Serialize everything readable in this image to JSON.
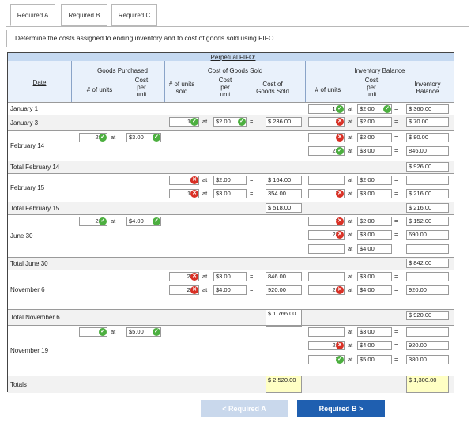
{
  "tabs": [
    "Required A",
    "Required B",
    "Required C"
  ],
  "instruction": "Determine the costs assigned to ending inventory and to cost of goods sold using FIFO.",
  "header": {
    "title": "Perpetual FIFO:",
    "goods_purchased": "Goods Purchased",
    "cogs": "Cost of Goods Sold",
    "inventory_balance": "Inventory Balance",
    "date": "Date",
    "num_units": "# of units",
    "cost_per_unit": [
      "Cost",
      "per",
      "unit"
    ],
    "num_units_sold": [
      "# of units",
      "sold"
    ],
    "cost_of_goods_sold": [
      "Cost of",
      "Goods Sold"
    ],
    "inv_balance": [
      "Inventory",
      "Balance"
    ]
  },
  "rows": [
    {
      "date": "January 1",
      "ib": [
        [
          "180",
          "ok",
          "at",
          "$2.00",
          "ok",
          "=",
          "$ 360.00"
        ]
      ]
    },
    {
      "date": "January 3",
      "sold": [
        [
          "118",
          "ok",
          "at",
          "$2.00",
          "ok",
          "=",
          "$ 236.00"
        ]
      ],
      "ib": [
        [
          "35",
          "bad",
          "at",
          "$2.00",
          "",
          "=",
          "$ 70.00"
        ]
      ]
    },
    {
      "date": "February 14",
      "gp": [
        "282",
        "ok",
        "at",
        "$3.00",
        "ok"
      ],
      "ib": [
        [
          "40",
          "bad",
          "at",
          "$2.00",
          "",
          "=",
          "$ 80.00"
        ],
        [
          "282",
          "ok",
          "at",
          "$3.00",
          "",
          "=",
          "846.00"
        ]
      ]
    },
    {
      "date": "Total February 14",
      "ib_total": "$ 926.00"
    },
    {
      "date": "February 15",
      "sold": [
        [
          "82",
          "bad",
          "at",
          "$2.00",
          "",
          "=",
          "$ 164.00"
        ],
        [
          "118",
          "bad",
          "at",
          "$3.00",
          "",
          "=",
          "354.00"
        ]
      ],
      "ib": [
        [
          "",
          "",
          "at",
          "$2.00",
          "",
          "=",
          ""
        ],
        [
          "72",
          "bad",
          "at",
          "$3.00",
          "",
          "=",
          "$ 216.00"
        ]
      ]
    },
    {
      "date": "Total February 15",
      "cogs_total": "$ 518.00",
      "ib_total": "$ 216.00"
    },
    {
      "date": "June 30",
      "gp": [
        "230",
        "ok",
        "at",
        "$4.00",
        "ok"
      ],
      "ib": [
        [
          "76",
          "bad",
          "at",
          "$2.00",
          "",
          "=",
          "$ 152.00"
        ],
        [
          "230",
          "bad",
          "at",
          "$3.00",
          "",
          "=",
          "690.00"
        ],
        [
          "",
          "",
          "at",
          "$4.00",
          "",
          "",
          ""
        ]
      ]
    },
    {
      "date": "Total June 30",
      "ib_total": "$ 842.00"
    },
    {
      "date": "November 6",
      "sold": [
        [
          "282",
          "bad",
          "at",
          "$3.00",
          "",
          "=",
          "846.00"
        ],
        [
          "230",
          "bad",
          "at",
          "$4.00",
          "",
          "=",
          "920.00"
        ]
      ],
      "ib": [
        [
          "",
          "",
          "at",
          "$3.00",
          "",
          "=",
          ""
        ],
        [
          "230",
          "bad",
          "at",
          "$4.00",
          "",
          "=",
          "920.00"
        ]
      ]
    },
    {
      "date": "Total November 6",
      "cogs_total": "$ 1,766.00",
      "ib_total": "$ 920.00"
    },
    {
      "date": "November 19",
      "gp": [
        "76",
        "ok",
        "at",
        "$5.00",
        "ok"
      ],
      "ib": [
        [
          "",
          "",
          "at",
          "$3.00",
          "",
          "=",
          ""
        ],
        [
          "230",
          "bad",
          "at",
          "$4.00",
          "",
          "=",
          "920.00"
        ],
        [
          "76",
          "ok",
          "at",
          "$5.00",
          "",
          "=",
          "380.00"
        ]
      ]
    },
    {
      "date": "Totals",
      "cogs_total": "$ 2,520.00",
      "ib_total": "$ 1,300.00"
    }
  ],
  "buttons": {
    "prev": "< Required A",
    "next": "Required B >"
  },
  "colors": {
    "check": "#4caf3f",
    "cross": "#d93025",
    "header_band": "#c5d9f1",
    "total_yellow": "#ffffc4",
    "next_button": "#1f5fb0"
  }
}
